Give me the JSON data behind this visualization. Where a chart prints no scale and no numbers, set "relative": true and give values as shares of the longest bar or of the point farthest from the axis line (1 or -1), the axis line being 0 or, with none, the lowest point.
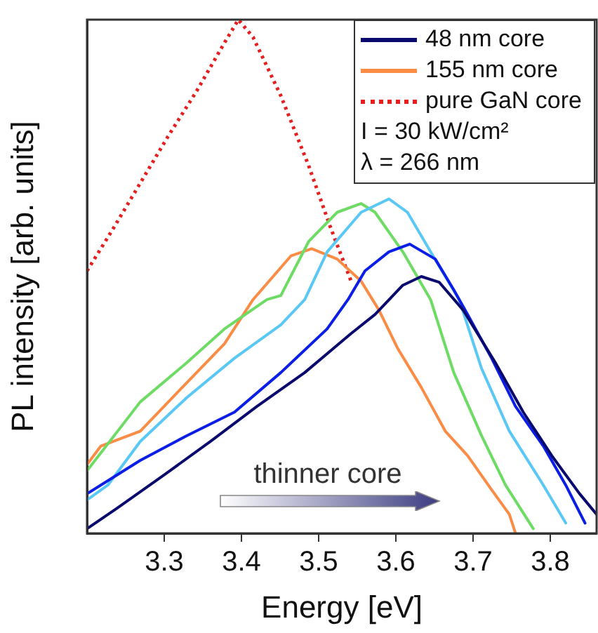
{
  "chart_data": {
    "type": "line",
    "relative": true,
    "xlabel": "Energy [eV]",
    "ylabel": "PL intensity [arb. units]",
    "xlim": [
      3.2,
      3.86
    ],
    "xticks": [
      3.3,
      3.4,
      3.5,
      3.6,
      3.7,
      3.8
    ],
    "tick_labels": "x",
    "grid": false,
    "legend": "top right",
    "marker": "none",
    "annotations": [
      "I = 30 kW/cm²",
      "λ = 266 nm",
      "thinner core"
    ],
    "series": [
      {
        "name": "48 nm core",
        "color": "#0a0a6e",
        "x": [
          3.2,
          3.238,
          3.3,
          3.36,
          3.42,
          3.482,
          3.542,
          3.573,
          3.609,
          3.633,
          3.656,
          3.687,
          3.729,
          3.765,
          3.802,
          3.838,
          3.86
        ],
        "values": [
          0.009,
          0.048,
          0.114,
          0.179,
          0.247,
          0.313,
          0.389,
          0.426,
          0.483,
          0.5,
          0.489,
          0.435,
          0.332,
          0.236,
          0.151,
          0.077,
          0.037
        ]
      },
      {
        "color": "#0a1ee6",
        "x": [
          3.2,
          3.269,
          3.329,
          3.391,
          3.451,
          3.511,
          3.538,
          3.56,
          3.591,
          3.618,
          3.651,
          3.675,
          3.693,
          3.724,
          3.755,
          3.791,
          3.82,
          3.845
        ],
        "values": [
          0.077,
          0.142,
          0.19,
          0.236,
          0.313,
          0.398,
          0.455,
          0.511,
          0.548,
          0.563,
          0.534,
          0.474,
          0.426,
          0.341,
          0.247,
          0.17,
          0.094,
          0.02
        ]
      },
      {
        "color": "#5ac8f5",
        "x": [
          3.2,
          3.227,
          3.269,
          3.329,
          3.391,
          3.451,
          3.482,
          3.511,
          3.555,
          3.591,
          3.615,
          3.645,
          3.682,
          3.711,
          3.747,
          3.791,
          3.82
        ],
        "values": [
          0.065,
          0.094,
          0.179,
          0.264,
          0.341,
          0.406,
          0.455,
          0.548,
          0.625,
          0.651,
          0.625,
          0.548,
          0.455,
          0.321,
          0.199,
          0.094,
          0.02
        ]
      },
      {
        "color": "#6edc64",
        "x": [
          3.2,
          3.269,
          3.329,
          3.378,
          3.433,
          3.451,
          3.487,
          3.524,
          3.555,
          3.573,
          3.609,
          3.645,
          3.675,
          3.711,
          3.742,
          3.778
        ],
        "values": [
          0.122,
          0.256,
          0.332,
          0.398,
          0.455,
          0.463,
          0.568,
          0.625,
          0.642,
          0.625,
          0.548,
          0.455,
          0.313,
          0.19,
          0.094,
          0.009
        ]
      },
      {
        "name": "155 nm core",
        "color": "#fa8c46",
        "x": [
          3.2,
          3.218,
          3.269,
          3.329,
          3.378,
          3.415,
          3.464,
          3.491,
          3.524,
          3.555,
          3.578,
          3.602,
          3.633,
          3.664,
          3.693,
          3.724,
          3.747,
          3.755
        ],
        "values": [
          0.134,
          0.17,
          0.199,
          0.293,
          0.369,
          0.455,
          0.54,
          0.554,
          0.534,
          0.491,
          0.435,
          0.361,
          0.284,
          0.199,
          0.151,
          0.085,
          0.037,
          0
        ]
      },
      {
        "name": "pure GaN core",
        "color": "#e61e1e",
        "line_style": "dotted",
        "x": [
          3.2,
          3.233,
          3.269,
          3.305,
          3.342,
          3.378,
          3.396,
          3.415,
          3.451,
          3.487,
          3.515,
          3.542
        ],
        "values": [
          0.511,
          0.591,
          0.682,
          0.773,
          0.861,
          0.955,
          1,
          0.966,
          0.852,
          0.716,
          0.597,
          0.491
        ]
      }
    ]
  }
}
